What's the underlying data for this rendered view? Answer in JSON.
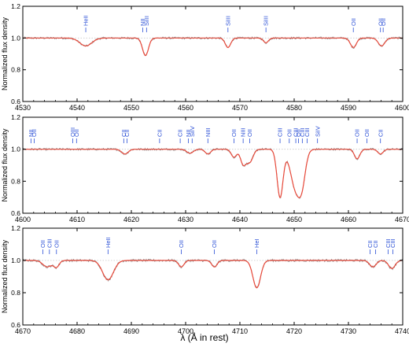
{
  "colors": {
    "observed": "#8a8a8a",
    "model": "#e8493a",
    "line_id": "#2a4fd6",
    "axis": "#000000",
    "grid": "#c8c8c8"
  },
  "xlabel": "λ (Å in rest)",
  "chart_data": [
    {
      "type": "line",
      "ylabel": "Normalized flux density",
      "xlim": [
        4530,
        4600
      ],
      "ylim": [
        0.6,
        1.2
      ],
      "xticks": [
        4530,
        4540,
        4550,
        4560,
        4570,
        4580,
        4590,
        4600
      ],
      "yticks": [
        0.6,
        0.8,
        1.0,
        1.2
      ],
      "ytick_labels": [
        "0.6",
        "0.8",
        "1.0",
        "1.2"
      ],
      "grid_y": 1.0,
      "line_ids": [
        {
          "label": "HeII",
          "x": 4541.6
        },
        {
          "label": "NII",
          "x": 4552.1
        },
        {
          "label": "SiIII",
          "x": 4552.8
        },
        {
          "label": "SiIII",
          "x": 4567.8
        },
        {
          "label": "SiIII",
          "x": 4574.8
        },
        {
          "label": "OII",
          "x": 4590.9
        },
        {
          "label": "OII",
          "x": 4595.9
        },
        {
          "label": "OII",
          "x": 4596.4
        }
      ],
      "features": [
        {
          "x": 4541.6,
          "depth": 0.05,
          "width": 1.1
        },
        {
          "x": 4552.6,
          "depth": 0.11,
          "width": 0.55
        },
        {
          "x": 4567.8,
          "depth": 0.06,
          "width": 0.5
        },
        {
          "x": 4574.8,
          "depth": 0.03,
          "width": 0.45
        },
        {
          "x": 4590.9,
          "depth": 0.06,
          "width": 0.55
        },
        {
          "x": 4596.1,
          "depth": 0.05,
          "width": 0.6
        }
      ],
      "series": [
        {
          "role": "observed",
          "noise": 0.007
        },
        {
          "role": "model",
          "noise": 0
        }
      ]
    },
    {
      "type": "line",
      "ylabel": "Normalized flux density",
      "xlim": [
        4600,
        4670
      ],
      "ylim": [
        0.6,
        1.2
      ],
      "xticks": [
        4600,
        4610,
        4620,
        4630,
        4640,
        4650,
        4660,
        4670
      ],
      "yticks": [
        0.6,
        0.8,
        1.0,
        1.2
      ],
      "ytick_labels": [
        "0.6",
        "0.8",
        "1.0",
        "1.2"
      ],
      "grid_y": 1.0,
      "line_ids": [
        {
          "label": "NII",
          "x": 4601.5
        },
        {
          "label": "OII",
          "x": 4602.1
        },
        {
          "label": "OIII",
          "x": 4609.2
        },
        {
          "label": "OII",
          "x": 4609.9
        },
        {
          "label": "CII",
          "x": 4618.6
        },
        {
          "label": "CII",
          "x": 4619.2
        },
        {
          "label": "CII",
          "x": 4625.2
        },
        {
          "label": "CII",
          "x": 4629.0
        },
        {
          "label": "NII",
          "x": 4630.5
        },
        {
          "label": "SiIV",
          "x": 4631.2
        },
        {
          "label": "NIII",
          "x": 4634.1
        },
        {
          "label": "OII",
          "x": 4638.9
        },
        {
          "label": "NIII",
          "x": 4640.6
        },
        {
          "label": "OII",
          "x": 4641.8
        },
        {
          "label": "CIII",
          "x": 4647.4
        },
        {
          "label": "CIII",
          "x": 4650.3
        },
        {
          "label": "OII",
          "x": 4649.1
        },
        {
          "label": "CIII",
          "x": 4651.5
        },
        {
          "label": "OII",
          "x": 4650.8
        },
        {
          "label": "CIII",
          "x": 4652.4
        },
        {
          "label": "SiIV",
          "x": 4654.3
        },
        {
          "label": "OII",
          "x": 4661.6
        },
        {
          "label": "OII",
          "x": 4663.4
        },
        {
          "label": "CII",
          "x": 4665.9
        }
      ],
      "features": [
        {
          "x": 4618.8,
          "depth": 0.03,
          "width": 0.6
        },
        {
          "x": 4630.8,
          "depth": 0.025,
          "width": 0.6
        },
        {
          "x": 4634.1,
          "depth": 0.03,
          "width": 0.5
        },
        {
          "x": 4638.9,
          "depth": 0.05,
          "width": 0.5
        },
        {
          "x": 4640.6,
          "depth": 0.09,
          "width": 0.5
        },
        {
          "x": 4641.8,
          "depth": 0.08,
          "width": 0.6
        },
        {
          "x": 4647.4,
          "depth": 0.3,
          "width": 0.55
        },
        {
          "x": 4650.4,
          "depth": 0.26,
          "width": 1.0
        },
        {
          "x": 4651.5,
          "depth": 0.12,
          "width": 0.6
        },
        {
          "x": 4661.6,
          "depth": 0.06,
          "width": 0.5
        },
        {
          "x": 4665.9,
          "depth": 0.03,
          "width": 0.5
        }
      ],
      "series": [
        {
          "role": "observed",
          "noise": 0.007
        },
        {
          "role": "model",
          "noise": 0
        }
      ]
    },
    {
      "type": "line",
      "ylabel": "Normalized flux density",
      "xlim": [
        4670,
        4740
      ],
      "ylim": [
        0.6,
        1.2
      ],
      "xticks": [
        4670,
        4680,
        4690,
        4700,
        4710,
        4720,
        4730,
        4740
      ],
      "yticks": [
        0.6,
        0.8,
        1.0,
        1.2
      ],
      "ytick_labels": [
        "0.6",
        "0.8",
        "1.0",
        "1.2"
      ],
      "grid_y": 1.0,
      "line_ids": [
        {
          "label": "OII",
          "x": 4673.7
        },
        {
          "label": "CIII",
          "x": 4674.9
        },
        {
          "label": "OII",
          "x": 4676.2
        },
        {
          "label": "HeII",
          "x": 4685.7
        },
        {
          "label": "OII",
          "x": 4699.2
        },
        {
          "label": "OII",
          "x": 4705.3
        },
        {
          "label": "HeI",
          "x": 4713.1
        },
        {
          "label": "CII",
          "x": 4734.0
        },
        {
          "label": "CII",
          "x": 4735.0
        },
        {
          "label": "CIII",
          "x": 4737.3
        },
        {
          "label": "CIII",
          "x": 4738.2
        }
      ],
      "features": [
        {
          "x": 4674.5,
          "depth": 0.04,
          "width": 0.8
        },
        {
          "x": 4676.2,
          "depth": 0.04,
          "width": 0.5
        },
        {
          "x": 4685.7,
          "depth": 0.12,
          "width": 1.0
        },
        {
          "x": 4699.2,
          "depth": 0.04,
          "width": 0.5
        },
        {
          "x": 4705.3,
          "depth": 0.04,
          "width": 0.5
        },
        {
          "x": 4713.1,
          "depth": 0.17,
          "width": 0.7
        },
        {
          "x": 4734.5,
          "depth": 0.04,
          "width": 0.6
        },
        {
          "x": 4738.0,
          "depth": 0.05,
          "width": 0.6
        }
      ],
      "series": [
        {
          "role": "observed",
          "noise": 0.008
        },
        {
          "role": "model",
          "noise": 0
        }
      ]
    }
  ]
}
